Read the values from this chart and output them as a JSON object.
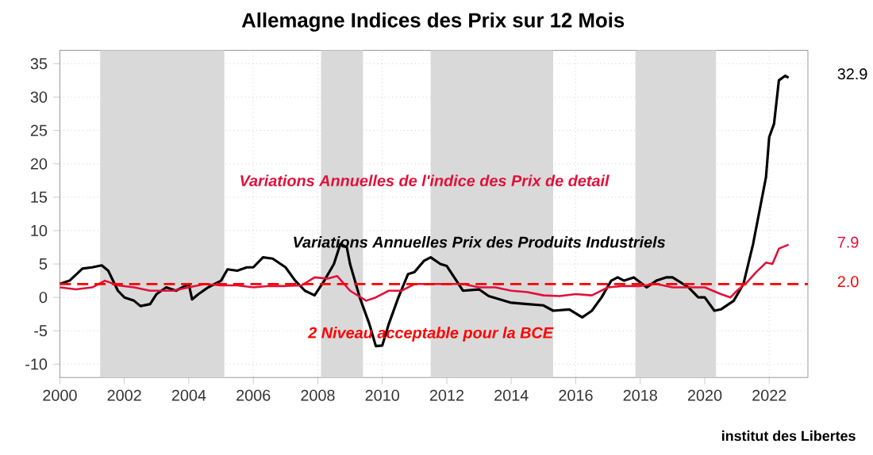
{
  "chart_data": {
    "type": "line",
    "title": "Allemagne Indices des Prix sur 12 Mois",
    "xlim": [
      2000,
      2023.2
    ],
    "xticks": [
      2000,
      2002,
      2004,
      2006,
      2008,
      2010,
      2012,
      2014,
      2016,
      2018,
      2020,
      2022
    ],
    "ylim": [
      -12,
      37
    ],
    "yticks": [
      -10,
      -5,
      0,
      5,
      10,
      15,
      20,
      25,
      30,
      35
    ],
    "grid": true,
    "line_style": "solid",
    "series": [
      {
        "name": "Variations Annuelles Prix des Produits Industriels",
        "color": "#000000",
        "x": [
          2000.0,
          2000.3,
          2000.7,
          2001.0,
          2001.3,
          2001.5,
          2001.8,
          2002.0,
          2002.3,
          2002.5,
          2002.8,
          2003.0,
          2003.3,
          2003.6,
          2004.0,
          2004.1,
          2004.3,
          2004.6,
          2005.0,
          2005.2,
          2005.5,
          2005.8,
          2006.0,
          2006.3,
          2006.6,
          2007.0,
          2007.3,
          2007.6,
          2007.9,
          2008.2,
          2008.5,
          2008.7,
          2008.9,
          2009.0,
          2009.3,
          2009.6,
          2009.8,
          2010.0,
          2010.2,
          2010.5,
          2010.8,
          2011.0,
          2011.3,
          2011.5,
          2011.8,
          2012.0,
          2012.3,
          2012.5,
          2013.0,
          2013.3,
          2014.0,
          2014.5,
          2015.0,
          2015.3,
          2015.8,
          2016.2,
          2016.5,
          2016.8,
          2017.1,
          2017.3,
          2017.5,
          2017.8,
          2018.2,
          2018.5,
          2018.8,
          2019.0,
          2019.5,
          2019.8,
          2020.0,
          2020.3,
          2020.5,
          2020.9,
          2021.2,
          2021.5,
          2021.7,
          2021.9,
          2022.0,
          2022.15,
          2022.3,
          2022.5,
          2022.6
        ],
        "values": [
          2,
          2.5,
          4.3,
          4.5,
          4.8,
          4,
          1,
          0,
          -0.5,
          -1.3,
          -1,
          0.5,
          1.5,
          1,
          2,
          -0.3,
          0.5,
          1.5,
          2.5,
          4.2,
          4,
          4.5,
          4.5,
          6,
          5.8,
          4.5,
          2.5,
          1,
          0.3,
          2.5,
          5,
          8,
          7.5,
          5,
          0,
          -4,
          -7.3,
          -7.2,
          -4,
          0,
          3.5,
          3.8,
          5.5,
          6,
          5,
          4.7,
          2.5,
          1,
          1.2,
          0.2,
          -0.8,
          -1,
          -1.2,
          -2,
          -1.8,
          -3,
          -2,
          0,
          2.5,
          3,
          2.5,
          3,
          1.5,
          2.5,
          3,
          3,
          1.5,
          0,
          0,
          -2,
          -1.8,
          -0.5,
          2,
          8,
          13,
          18,
          24,
          26,
          32.5,
          33.2,
          32.9
        ]
      },
      {
        "name": "Variations Annuelles de l'indice des Prix de detail",
        "color": "#e0103a",
        "x": [
          2000.0,
          2000.5,
          2001.0,
          2001.4,
          2001.8,
          2002.3,
          2002.8,
          2003.5,
          2004.0,
          2004.5,
          2005.0,
          2005.5,
          2006.0,
          2006.5,
          2007.0,
          2007.5,
          2007.9,
          2008.3,
          2008.6,
          2009.0,
          2009.5,
          2009.8,
          2010.2,
          2010.6,
          2011.0,
          2011.5,
          2012.0,
          2012.5,
          2013.0,
          2013.5,
          2014.0,
          2014.5,
          2015.0,
          2015.5,
          2016.0,
          2016.5,
          2017.0,
          2017.5,
          2018.0,
          2018.5,
          2019.0,
          2019.5,
          2020.0,
          2020.5,
          2020.8,
          2021.0,
          2021.3,
          2021.6,
          2021.9,
          2022.1,
          2022.3,
          2022.6
        ],
        "values": [
          1.5,
          1.2,
          1.5,
          2.5,
          1.8,
          1.5,
          1,
          1,
          1.5,
          2,
          1.8,
          1.8,
          1.5,
          1.7,
          1.7,
          1.8,
          3,
          2.8,
          3.2,
          1,
          -0.5,
          0,
          1,
          1,
          2,
          2,
          2,
          2,
          1.5,
          1.5,
          1,
          0.8,
          0.3,
          0.2,
          0.5,
          0.3,
          1.5,
          1.7,
          1.7,
          2,
          1.5,
          1.5,
          1.5,
          0.5,
          0,
          1,
          2.2,
          3.8,
          5.2,
          5,
          7.3,
          7.9
        ]
      }
    ],
    "ref_lines": [
      {
        "axis": "y",
        "value": 2,
        "label": "2 Niveau acceptable pour la BCE",
        "color": "#ff0000",
        "line_style": "dashed"
      }
    ],
    "bands": [
      {
        "axis": "x",
        "from": 2001.25,
        "to": 2005.1,
        "color": "#d9d9d9"
      },
      {
        "axis": "x",
        "from": 2008.1,
        "to": 2009.4,
        "color": "#d9d9d9"
      },
      {
        "axis": "x",
        "from": 2011.5,
        "to": 2015.3,
        "color": "#d9d9d9"
      },
      {
        "axis": "x",
        "from": 2017.85,
        "to": 2020.35,
        "color": "#d9d9d9"
      }
    ],
    "annotations": [
      "32.9",
      "7.9",
      "2.0",
      "institut des Libertes"
    ]
  }
}
